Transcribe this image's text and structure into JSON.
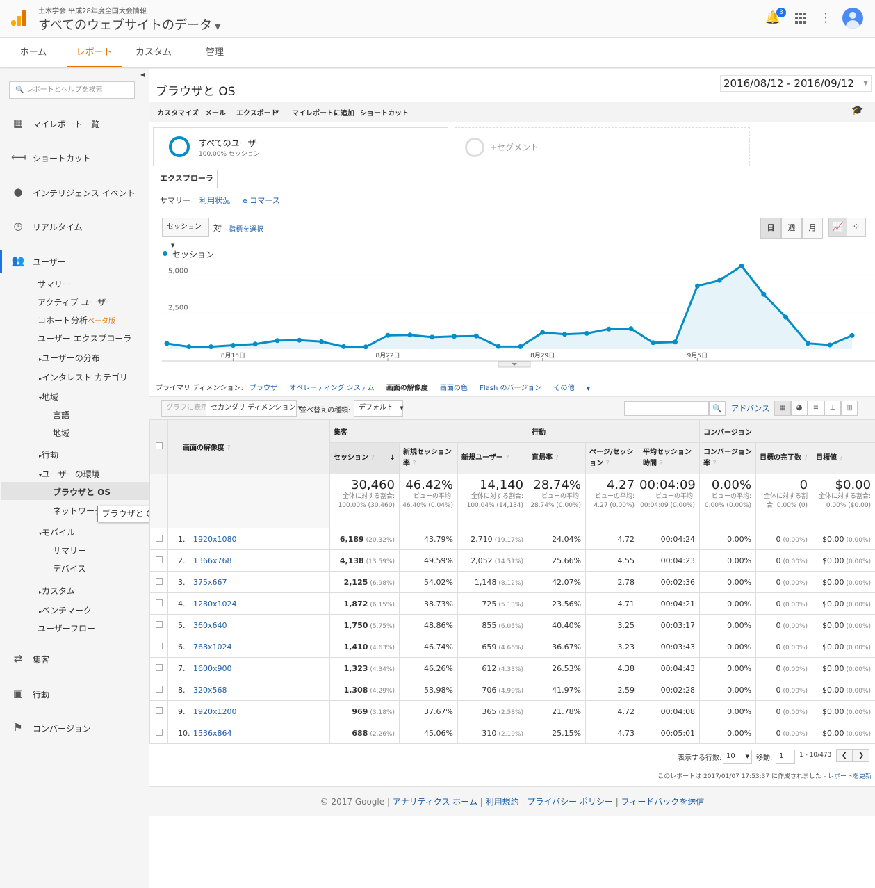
{
  "header": {
    "account": "土木学会 平成28年度全国大会情報",
    "property": "すべてのウェブサイトのデータ",
    "notif_count": "3"
  },
  "nav": {
    "home": "ホーム",
    "reports": "レポート",
    "custom": "カスタム",
    "admin": "管理"
  },
  "sidebar": {
    "search_placeholder": "レポートとヘルプを検索",
    "main_items": [
      "マイレポート一覧",
      "ショートカット",
      "インテリジェンス イベント",
      "リアルタイム",
      "ユーザー",
      "集客",
      "行動",
      "コンバージョン"
    ],
    "user_items": [
      "サマリー",
      "アクティブ ユーザー",
      "コホート分析",
      "ユーザー エクスプローラ",
      "ユーザーの分布",
      "インタレスト カテゴリ",
      "地域",
      "言語",
      "地域",
      "行動",
      "ユーザーの環境",
      "ブラウザと OS",
      "ネットワーク",
      "モバイル",
      "サマリー",
      "デバイス",
      "カスタム",
      "ベンチマーク",
      "ユーザーフロー"
    ],
    "beta": "ベータ版",
    "tooltip": "ブラウザと OS"
  },
  "page": {
    "title": "ブラウザと OS",
    "date_range": "2016/08/12 - 2016/09/12",
    "toolbar": [
      "カスタマイズ",
      "メール",
      "エクスポート",
      "マイレポートに追加",
      "ショートカット"
    ],
    "segment_name": "すべてのユーザー",
    "segment_sub": "100.00% セッション",
    "add_segment": "+セグメント",
    "explorer_tab": "エクスプローラ",
    "subtabs": [
      "サマリー",
      "利用状況",
      "e コマース"
    ],
    "metric_select": "セッション",
    "vs": "対",
    "select_metric": "指標を選択",
    "periods": [
      "日",
      "週",
      "月"
    ],
    "primary_dimension_label": "プライマリ ディメンション:",
    "dimensions": [
      "ブラウザ",
      "オペレーティング システム",
      "画面の解像度",
      "画面の色",
      "Flash のバージョン",
      "その他"
    ],
    "plot_rows": "グラフに表示",
    "secondary_dim": "セカンダリ ディメンション",
    "sort_type_label": "並べ替えの種類:",
    "sort_default": "デフォルト",
    "advanced": "アドバンス"
  },
  "chart_data": {
    "type": "area",
    "series": [
      {
        "name": "セッション",
        "values": [
          380,
          160,
          160,
          260,
          340,
          570,
          600,
          500,
          170,
          150,
          930,
          950,
          800,
          860,
          880,
          180,
          170,
          1120,
          1000,
          1060,
          1350,
          1380,
          430,
          480,
          4250,
          4630,
          5600,
          3700,
          2150,
          390,
          280,
          920
        ]
      }
    ],
    "x_tick_labels": [
      "8月15日",
      "8月22日",
      "8月29日",
      "9月5日"
    ],
    "y_tick_labels": [
      "5,000",
      "2,500"
    ],
    "ylim": [
      0,
      6000
    ],
    "color": "#058dc7"
  },
  "table": {
    "group_headers": [
      "集客",
      "行動",
      "コンバージョン"
    ],
    "dim_header": "画面の解像度",
    "columns": [
      "セッション",
      "新規セッション率",
      "新規ユーザー",
      "直帰率",
      "ページ/セッション",
      "平均セッション時間",
      "コンバージョン率",
      "目標の完了数",
      "目標値"
    ],
    "totals": [
      {
        "v": "30,460",
        "s": "全体に対する割合: 100.00% (30,460)"
      },
      {
        "v": "46.42%",
        "s": "ビューの平均: 46.40% (0.04%)"
      },
      {
        "v": "14,140",
        "s": "全体に対する割合: 100.04% (14,134)"
      },
      {
        "v": "28.74%",
        "s": "ビューの平均: 28.74% (0.00%)"
      },
      {
        "v": "4.27",
        "s": "ビューの平均: 4.27 (0.00%)"
      },
      {
        "v": "00:04:09",
        "s": "ビューの平均: 00:04:09 (0.00%)"
      },
      {
        "v": "0.00%",
        "s": "ビューの平均: 0.00% (0.00%)"
      },
      {
        "v": "0",
        "s": "全体に対する割合: 0.00% (0)"
      },
      {
        "v": "$0.00",
        "s": "全体に対する割合: 0.00% ($0.00)"
      }
    ],
    "rows": [
      {
        "n": "1.",
        "res": "1920x1080",
        "s": "6,189",
        "sp": "(20.32%)",
        "nsr": "43.79%",
        "nu": "2,710",
        "nup": "(19.17%)",
        "br": "24.04%",
        "pps": "4.72",
        "dur": "00:04:24",
        "cr": "0.00%",
        "gc": "0",
        "gcp": "(0.00%)",
        "gv": "$0.00",
        "gvp": "(0.00%)"
      },
      {
        "n": "2.",
        "res": "1366x768",
        "s": "4,138",
        "sp": "(13.59%)",
        "nsr": "49.59%",
        "nu": "2,052",
        "nup": "(14.51%)",
        "br": "25.66%",
        "pps": "4.55",
        "dur": "00:04:23",
        "cr": "0.00%",
        "gc": "0",
        "gcp": "(0.00%)",
        "gv": "$0.00",
        "gvp": "(0.00%)"
      },
      {
        "n": "3.",
        "res": "375x667",
        "s": "2,125",
        "sp": "(6.98%)",
        "nsr": "54.02%",
        "nu": "1,148",
        "nup": "(8.12%)",
        "br": "42.07%",
        "pps": "2.78",
        "dur": "00:02:36",
        "cr": "0.00%",
        "gc": "0",
        "gcp": "(0.00%)",
        "gv": "$0.00",
        "gvp": "(0.00%)"
      },
      {
        "n": "4.",
        "res": "1280x1024",
        "s": "1,872",
        "sp": "(6.15%)",
        "nsr": "38.73%",
        "nu": "725",
        "nup": "(5.13%)",
        "br": "23.56%",
        "pps": "4.71",
        "dur": "00:04:21",
        "cr": "0.00%",
        "gc": "0",
        "gcp": "(0.00%)",
        "gv": "$0.00",
        "gvp": "(0.00%)"
      },
      {
        "n": "5.",
        "res": "360x640",
        "s": "1,750",
        "sp": "(5.75%)",
        "nsr": "48.86%",
        "nu": "855",
        "nup": "(6.05%)",
        "br": "40.40%",
        "pps": "3.25",
        "dur": "00:03:17",
        "cr": "0.00%",
        "gc": "0",
        "gcp": "(0.00%)",
        "gv": "$0.00",
        "gvp": "(0.00%)"
      },
      {
        "n": "6.",
        "res": "768x1024",
        "s": "1,410",
        "sp": "(4.63%)",
        "nsr": "46.74%",
        "nu": "659",
        "nup": "(4.66%)",
        "br": "36.67%",
        "pps": "3.23",
        "dur": "00:03:43",
        "cr": "0.00%",
        "gc": "0",
        "gcp": "(0.00%)",
        "gv": "$0.00",
        "gvp": "(0.00%)"
      },
      {
        "n": "7.",
        "res": "1600x900",
        "s": "1,323",
        "sp": "(4.34%)",
        "nsr": "46.26%",
        "nu": "612",
        "nup": "(4.33%)",
        "br": "26.53%",
        "pps": "4.38",
        "dur": "00:04:43",
        "cr": "0.00%",
        "gc": "0",
        "gcp": "(0.00%)",
        "gv": "$0.00",
        "gvp": "(0.00%)"
      },
      {
        "n": "8.",
        "res": "320x568",
        "s": "1,308",
        "sp": "(4.29%)",
        "nsr": "53.98%",
        "nu": "706",
        "nup": "(4.99%)",
        "br": "41.97%",
        "pps": "2.59",
        "dur": "00:02:28",
        "cr": "0.00%",
        "gc": "0",
        "gcp": "(0.00%)",
        "gv": "$0.00",
        "gvp": "(0.00%)"
      },
      {
        "n": "9.",
        "res": "1920x1200",
        "s": "969",
        "sp": "(3.18%)",
        "nsr": "37.67%",
        "nu": "365",
        "nup": "(2.58%)",
        "br": "21.78%",
        "pps": "4.72",
        "dur": "00:04:08",
        "cr": "0.00%",
        "gc": "0",
        "gcp": "(0.00%)",
        "gv": "$0.00",
        "gvp": "(0.00%)"
      },
      {
        "n": "10.",
        "res": "1536x864",
        "s": "688",
        "sp": "(2.26%)",
        "nsr": "45.06%",
        "nu": "310",
        "nup": "(2.19%)",
        "br": "25.15%",
        "pps": "4.73",
        "dur": "00:05:01",
        "cr": "0.00%",
        "gc": "0",
        "gcp": "(0.00%)",
        "gv": "$0.00",
        "gvp": "(0.00%)"
      }
    ]
  },
  "pager": {
    "rows_label": "表示する行数:",
    "rows_value": "10",
    "goto_label": "移動:",
    "goto_value": "1",
    "range": "1 - 10/473",
    "created": "このレポートは 2017/01/07 17:53:37 に作成されました -",
    "refresh": "レポートを更新"
  },
  "footer": {
    "copyright": "© 2017 Google",
    "links": [
      "アナリティクス ホーム",
      "利用規約",
      "プライバシー ポリシー",
      "フィードバックを送信"
    ]
  }
}
